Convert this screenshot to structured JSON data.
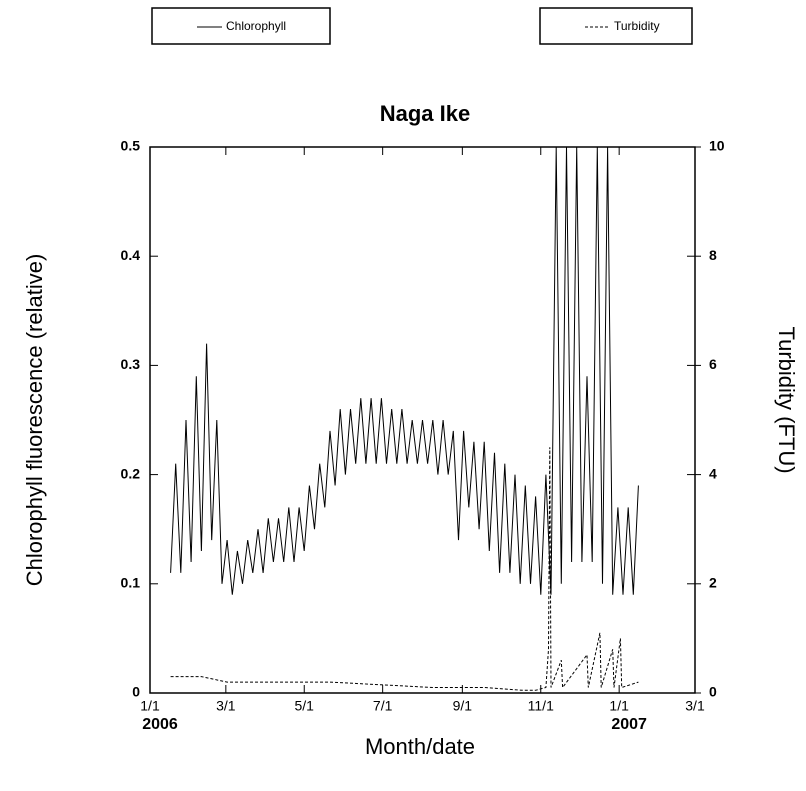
{
  "chart_data": {
    "type": "line",
    "title": "Naga Ike",
    "x_label": "Month/date",
    "y_label": "Chlorophyll fluorescence (relative)",
    "y2_label": "Turbidity (FTU)",
    "xlim": [
      0,
      424
    ],
    "xticks": [
      {
        "value": 0,
        "label": "1/1"
      },
      {
        "value": 59,
        "label": "3/1"
      },
      {
        "value": 120,
        "label": "5/1"
      },
      {
        "value": 181,
        "label": "7/1"
      },
      {
        "value": 243,
        "label": "9/1"
      },
      {
        "value": 304,
        "label": "11/1"
      },
      {
        "value": 365,
        "label": "1/1"
      },
      {
        "value": 424,
        "label": "3/1"
      }
    ],
    "x_year_labels": [
      {
        "value": 0,
        "label": "2006"
      },
      {
        "value": 365,
        "label": "2007"
      }
    ],
    "ylim": [
      0,
      0.5
    ],
    "yticks": [
      {
        "value": 0,
        "label": "0"
      },
      {
        "value": 0.1,
        "label": "0.1"
      },
      {
        "value": 0.2,
        "label": "0.2"
      },
      {
        "value": 0.3,
        "label": "0.3"
      },
      {
        "value": 0.4,
        "label": "0.4"
      },
      {
        "value": 0.5,
        "label": "0.5"
      }
    ],
    "y2lim": [
      0,
      10
    ],
    "y2ticks": [
      0,
      2,
      4,
      6,
      8,
      10
    ],
    "legend": "top",
    "series": [
      {
        "name": "Chlorophyll",
        "color": "#000000",
        "dash": "solid",
        "x": [
          16,
          20,
          24,
          28,
          32,
          36,
          40,
          44,
          48,
          52,
          56,
          60,
          64,
          68,
          72,
          76,
          80,
          84,
          88,
          92,
          96,
          100,
          104,
          108,
          112,
          116,
          120,
          124,
          128,
          132,
          136,
          140,
          144,
          148,
          152,
          156,
          160,
          164,
          168,
          172,
          176,
          180,
          184,
          188,
          192,
          196,
          200,
          204,
          208,
          212,
          216,
          220,
          224,
          228,
          232,
          236,
          240,
          244,
          248,
          252,
          256,
          260,
          264,
          268,
          272,
          276,
          280,
          284,
          288,
          292,
          296,
          300,
          304,
          308,
          312,
          316,
          320,
          324,
          328,
          332,
          336,
          340,
          344,
          348,
          352,
          356,
          360,
          364,
          368,
          372,
          376,
          380
        ],
        "values": [
          0.11,
          0.21,
          0.11,
          0.25,
          0.12,
          0.29,
          0.13,
          0.32,
          0.14,
          0.25,
          0.1,
          0.14,
          0.09,
          0.13,
          0.1,
          0.14,
          0.11,
          0.15,
          0.11,
          0.16,
          0.12,
          0.16,
          0.12,
          0.17,
          0.12,
          0.17,
          0.13,
          0.19,
          0.15,
          0.21,
          0.17,
          0.24,
          0.19,
          0.26,
          0.2,
          0.26,
          0.21,
          0.27,
          0.21,
          0.27,
          0.21,
          0.27,
          0.21,
          0.26,
          0.21,
          0.26,
          0.21,
          0.25,
          0.21,
          0.25,
          0.21,
          0.25,
          0.2,
          0.25,
          0.2,
          0.24,
          0.14,
          0.24,
          0.17,
          0.23,
          0.15,
          0.23,
          0.13,
          0.22,
          0.11,
          0.21,
          0.11,
          0.2,
          0.1,
          0.19,
          0.1,
          0.18,
          0.09,
          0.2,
          0.09,
          0.5,
          0.1,
          0.5,
          0.12,
          0.5,
          0.12,
          0.29,
          0.12,
          0.5,
          0.1,
          0.5,
          0.09,
          0.17,
          0.09,
          0.17,
          0.09,
          0.19
        ]
      },
      {
        "name": "Turbidity",
        "color": "#000000",
        "dash": "dotted",
        "axis": "y2",
        "x": [
          16,
          40,
          60,
          100,
          140,
          180,
          220,
          260,
          290,
          300,
          308,
          310,
          311,
          312,
          320,
          321,
          340,
          341,
          350,
          351,
          360,
          361,
          366,
          367,
          380
        ],
        "values": [
          0.3,
          0.3,
          0.2,
          0.2,
          0.2,
          0.15,
          0.1,
          0.1,
          0.05,
          0.05,
          0.1,
          0.8,
          4.5,
          0.1,
          0.6,
          0.1,
          0.7,
          0.1,
          1.1,
          0.1,
          0.8,
          0.1,
          1.0,
          0.1,
          0.2
        ]
      }
    ]
  }
}
